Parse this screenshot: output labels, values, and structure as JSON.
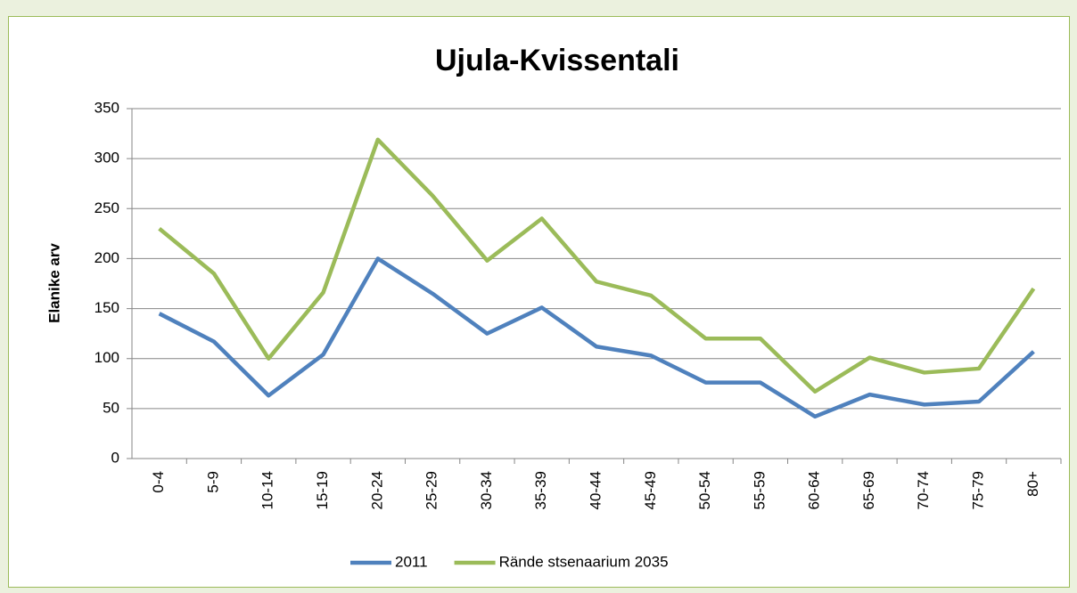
{
  "chart_data": {
    "type": "line",
    "title": "Ujula-Kvissentali",
    "ylabel": "Elanike arv",
    "categories": [
      "0-4",
      "5-9",
      "10-14",
      "15-19",
      "20-24",
      "25-29",
      "30-34",
      "35-39",
      "40-44",
      "45-49",
      "50-54",
      "55-59",
      "60-64",
      "65-69",
      "70-74",
      "75-79",
      "80+"
    ],
    "series": [
      {
        "name": "2011",
        "color": "#4f81bd",
        "values": [
          145,
          117,
          63,
          104,
          200,
          165,
          125,
          151,
          112,
          103,
          76,
          76,
          42,
          64,
          54,
          57,
          107
        ]
      },
      {
        "name": "Rände stsenaarium 2035",
        "color": "#9bbb59",
        "values": [
          230,
          185,
          100,
          166,
          319,
          263,
          198,
          240,
          177,
          163,
          120,
          120,
          67,
          101,
          86,
          90,
          170
        ]
      }
    ],
    "ylim": [
      0,
      350
    ],
    "yticks": [
      0,
      50,
      100,
      150,
      200,
      250,
      300,
      350
    ],
    "grid": true,
    "legend": "bottom"
  }
}
